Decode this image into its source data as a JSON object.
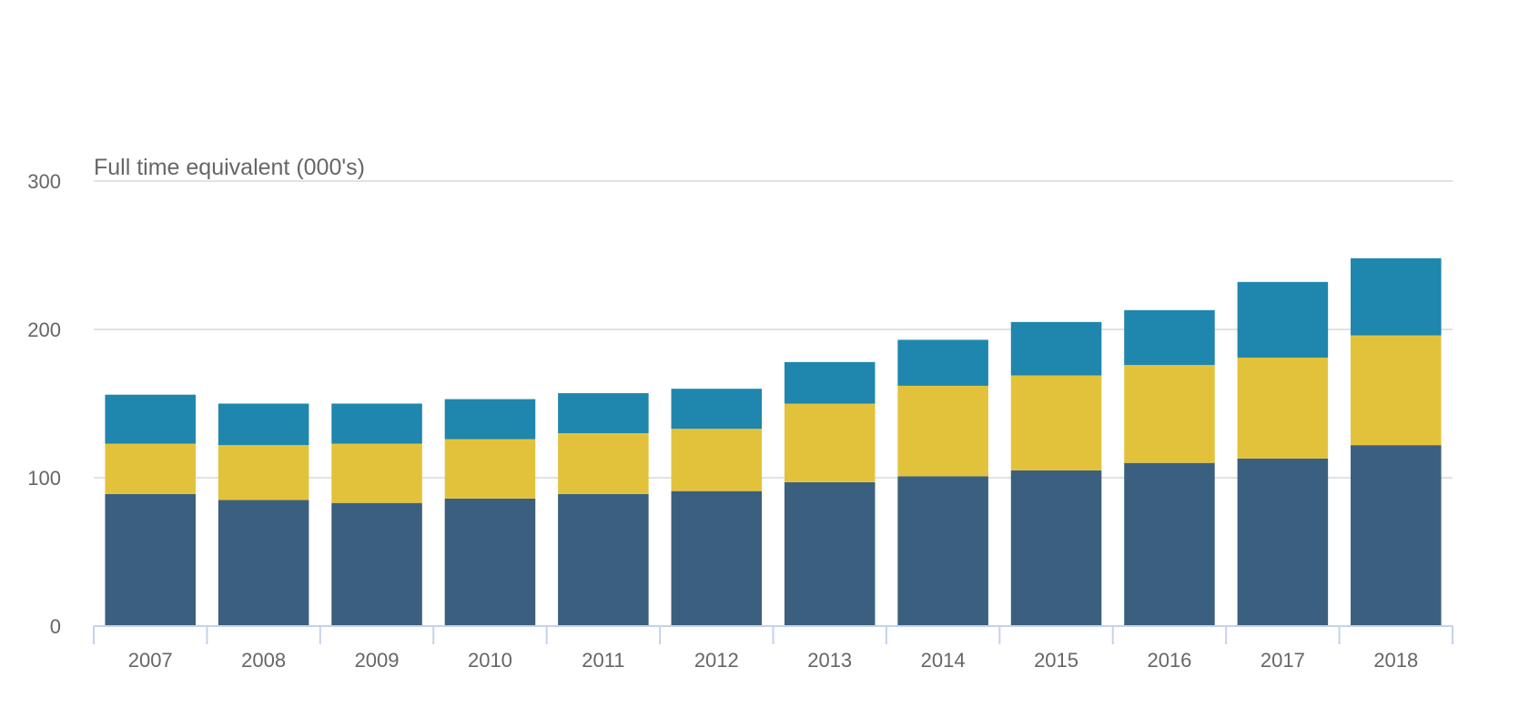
{
  "chart_data": {
    "type": "bar",
    "stacked": true,
    "title": "",
    "xlabel": "",
    "ylabel": "Full time equivalent (000's)",
    "categories": [
      "2007",
      "2008",
      "2009",
      "2010",
      "2011",
      "2012",
      "2013",
      "2014",
      "2015",
      "2016",
      "2017",
      "2018"
    ],
    "ylim": [
      0,
      300
    ],
    "yticks": [
      0,
      100,
      200,
      300
    ],
    "grid": true,
    "legend": "none",
    "series": [
      {
        "color": "#3b5f7f",
        "values": [
          89,
          85,
          83,
          86,
          89,
          91,
          97,
          101,
          105,
          110,
          113,
          122
        ]
      },
      {
        "color": "#e3c23b",
        "values": [
          34,
          37,
          40,
          40,
          41,
          42,
          53,
          61,
          64,
          66,
          68,
          74
        ]
      },
      {
        "color": "#1f86ad",
        "values": [
          33,
          28,
          27,
          27,
          27,
          27,
          28,
          31,
          36,
          37,
          51,
          52
        ]
      }
    ]
  }
}
